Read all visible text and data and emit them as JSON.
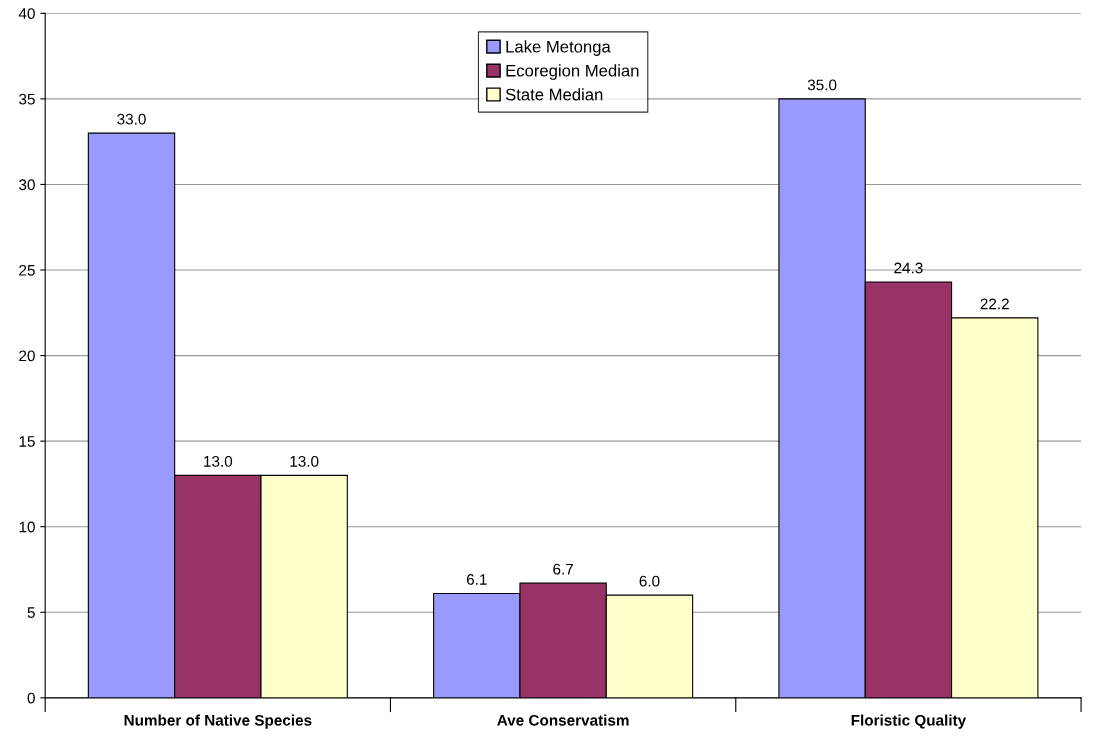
{
  "chart_data": {
    "type": "bar",
    "categories": [
      "Number of Native Species",
      "Ave Conservatism",
      "Floristic Quality"
    ],
    "series": [
      {
        "name": "Lake Metonga",
        "color": "#9999ff",
        "values": [
          33.0,
          6.1,
          35.0
        ],
        "value_labels": [
          "33.0",
          "6.1",
          "35.0"
        ]
      },
      {
        "name": "Ecoregion Median",
        "color": "#993366",
        "values": [
          13.0,
          6.7,
          24.3
        ],
        "value_labels": [
          "13.0",
          "6.7",
          "24.3"
        ]
      },
      {
        "name": "State Median",
        "color": "#ffffcc",
        "values": [
          13.0,
          6.0,
          22.2
        ],
        "value_labels": [
          "13.0",
          "6.0",
          "22.2"
        ]
      }
    ],
    "ylim": [
      0,
      40
    ],
    "yticks": [
      0,
      5,
      10,
      15,
      20,
      25,
      30,
      35,
      40
    ],
    "grid": "y",
    "legend": "top"
  }
}
